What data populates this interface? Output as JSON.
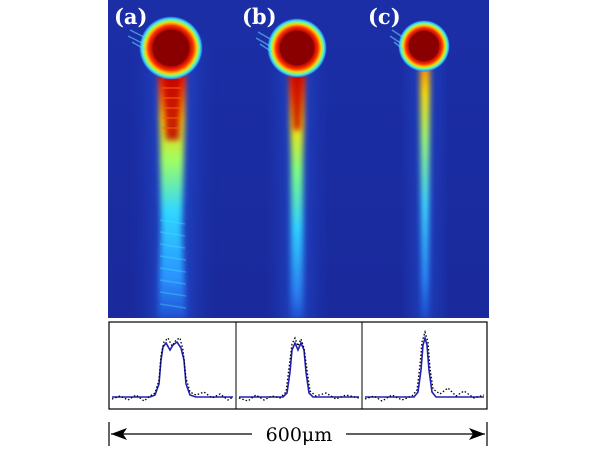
{
  "figure": {
    "panels": [
      {
        "label": "(a)"
      },
      {
        "label": "(b)"
      },
      {
        "label": "(c)"
      }
    ],
    "scale_bar": {
      "text": "600μm"
    },
    "profiles": [
      {
        "panel": "(a)",
        "measured": "dotted",
        "fit": "solid",
        "relative_width": 1.0,
        "double_peak": true
      },
      {
        "panel": "(b)",
        "measured": "dotted",
        "fit": "solid",
        "relative_width": 0.62,
        "double_peak": true
      },
      {
        "panel": "(c)",
        "measured": "dotted",
        "fit": "solid",
        "relative_width": 0.35,
        "double_peak": false
      }
    ],
    "colors": {
      "background": "#1a2fa8",
      "beam_core": "#8b0000",
      "fit_line": "#1f1fb0",
      "measured_line": "#000000"
    }
  }
}
